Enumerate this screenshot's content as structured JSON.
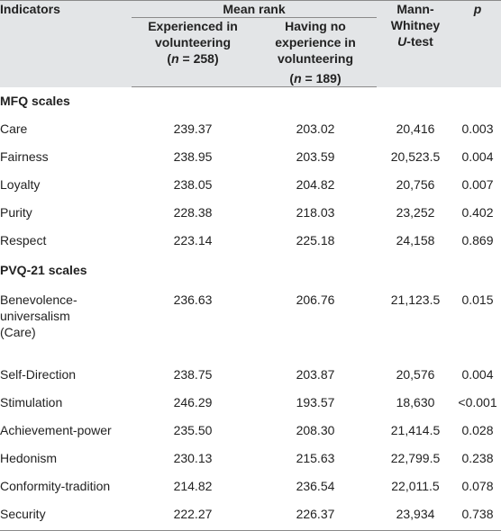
{
  "header": {
    "indicators": "Indicators",
    "mean_rank": "Mean rank",
    "mann_whitney_line1": "Mann-",
    "mann_whitney_line2": "Whitney",
    "mann_whitney_u": "U",
    "mann_whitney_test": "-test",
    "p": "p",
    "group1_line1": "Experienced in",
    "group1_line2": "volunteering",
    "group1_n": "(n = 258)",
    "group2_line1": "Having no",
    "group2_line2": "experience in",
    "group2_line3": "volunteering",
    "group2_n": "(n = 189)"
  },
  "sections": [
    {
      "title": "MFQ scales",
      "rows": [
        {
          "indicator": "Care",
          "experienced": "239.37",
          "no_experience": "203.02",
          "u": "20,416",
          "p": "0.003"
        },
        {
          "indicator": "Fairness",
          "experienced": "238.95",
          "no_experience": "203.59",
          "u": "20,523.5",
          "p": "0.004"
        },
        {
          "indicator": "Loyalty",
          "experienced": "238.05",
          "no_experience": "204.82",
          "u": "20,756",
          "p": "0.007"
        },
        {
          "indicator": "Purity",
          "experienced": "228.38",
          "no_experience": "218.03",
          "u": "23,252",
          "p": "0.402"
        },
        {
          "indicator": "Respect",
          "experienced": "223.14",
          "no_experience": "225.18",
          "u": "24,158",
          "p": "0.869"
        }
      ]
    },
    {
      "title": "PVQ-21 scales",
      "rows": [
        {
          "indicator_lines": [
            "Benevolence-",
            "universalism",
            "(Care)"
          ],
          "experienced": "236.63",
          "no_experience": "206.76",
          "u": "21,123.5",
          "p": "0.015"
        },
        {
          "indicator": "Self-Direction",
          "experienced": "238.75",
          "no_experience": "203.87",
          "u": "20,576",
          "p": "0.004"
        },
        {
          "indicator": "Stimulation",
          "experienced": "246.29",
          "no_experience": "193.57",
          "u": "18,630",
          "p": "<0.001"
        },
        {
          "indicator": "Achievement-power",
          "experienced": "235.50",
          "no_experience": "208.30",
          "u": "21,414.5",
          "p": "0.028"
        },
        {
          "indicator": "Hedonism",
          "experienced": "230.13",
          "no_experience": "215.63",
          "u": "22,799.5",
          "p": "0.238"
        },
        {
          "indicator": "Conformity-tradition",
          "experienced": "214.82",
          "no_experience": "236.54",
          "u": "22,011.5",
          "p": "0.078"
        },
        {
          "indicator": "Security",
          "experienced": "222.27",
          "no_experience": "226.37",
          "u": "23,934",
          "p": "0.738"
        }
      ]
    }
  ]
}
